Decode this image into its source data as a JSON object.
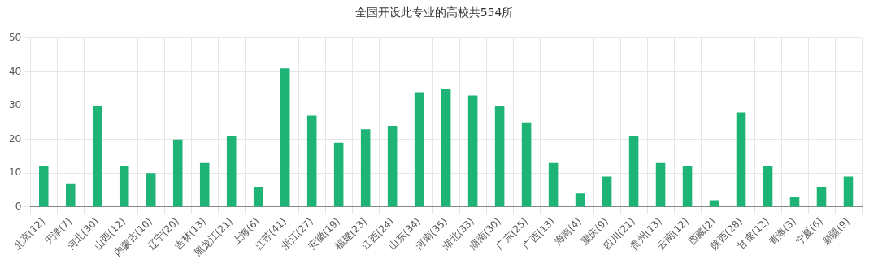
{
  "chart_data": {
    "type": "bar",
    "title": "全国开设此专业的高校共554所",
    "categories": [
      "北京(12)",
      "天津(7)",
      "河北(30)",
      "山西(12)",
      "内蒙古(10)",
      "辽宁(20)",
      "吉林(13)",
      "黑龙江(21)",
      "上海(6)",
      "江苏(41)",
      "浙江(27)",
      "安徽(19)",
      "福建(23)",
      "江西(24)",
      "山东(34)",
      "河南(35)",
      "湖北(33)",
      "湖南(30)",
      "广东(25)",
      "广西(13)",
      "海南(4)",
      "重庆(9)",
      "四川(21)",
      "贵州(13)",
      "云南(12)",
      "西藏(2)",
      "陕西(28)",
      "甘肃(12)",
      "青海(3)",
      "宁夏(6)",
      "新疆(9)"
    ],
    "values": [
      12,
      7,
      30,
      12,
      10,
      20,
      13,
      21,
      6,
      41,
      27,
      19,
      23,
      24,
      34,
      35,
      33,
      30,
      25,
      13,
      4,
      9,
      21,
      13,
      12,
      2,
      28,
      12,
      3,
      6,
      9
    ],
    "color": "#1eb475",
    "ylim": [
      0,
      50
    ],
    "yticks": [
      0,
      10,
      20,
      30,
      40,
      50
    ],
    "grid": true
  }
}
